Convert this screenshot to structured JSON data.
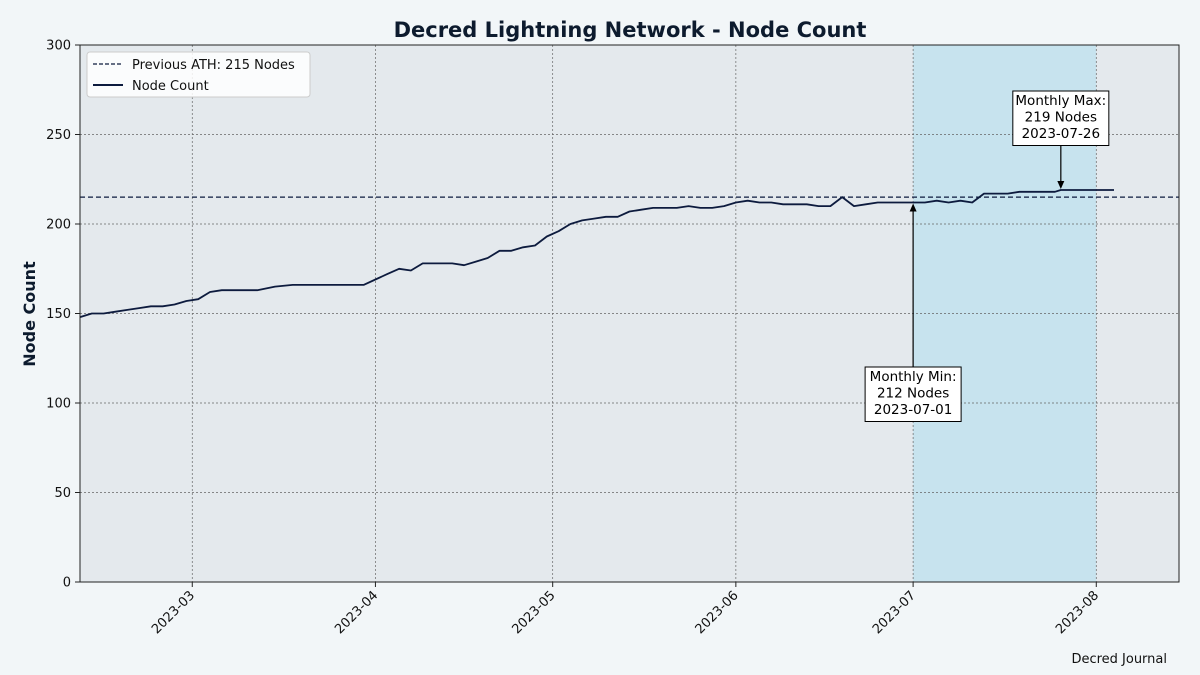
{
  "chart_data": {
    "type": "line",
    "title": "Decred Lightning Network - Node Count",
    "xlabel": "",
    "ylabel": "Node Count",
    "ylim": [
      0,
      300
    ],
    "yticks": [
      0,
      50,
      100,
      150,
      200,
      250,
      300
    ],
    "xlim": [
      "2023-02-10",
      "2023-08-15"
    ],
    "xticks": [
      "2023-03",
      "2023-04",
      "2023-05",
      "2023-06",
      "2023-07",
      "2023-08"
    ],
    "grid": true,
    "legend_position": "top-left",
    "shaded_region": {
      "from": "2023-07-01",
      "to": "2023-08-01",
      "color": "#c7e3ee"
    },
    "reference_line": {
      "name": "Previous ATH: 215 Nodes",
      "value": 215,
      "style": "dashed",
      "color": "#0d1b3e"
    },
    "series": [
      {
        "name": "Node Count",
        "color": "#0d1b3e",
        "x": [
          "2023-02-10",
          "2023-02-12",
          "2023-02-14",
          "2023-02-16",
          "2023-02-18",
          "2023-02-20",
          "2023-02-22",
          "2023-02-24",
          "2023-02-26",
          "2023-02-28",
          "2023-03-02",
          "2023-03-04",
          "2023-03-06",
          "2023-03-08",
          "2023-03-10",
          "2023-03-12",
          "2023-03-15",
          "2023-03-18",
          "2023-03-21",
          "2023-03-24",
          "2023-03-27",
          "2023-03-30",
          "2023-04-01",
          "2023-04-03",
          "2023-04-05",
          "2023-04-07",
          "2023-04-09",
          "2023-04-12",
          "2023-04-14",
          "2023-04-16",
          "2023-04-18",
          "2023-04-20",
          "2023-04-22",
          "2023-04-24",
          "2023-04-26",
          "2023-04-28",
          "2023-04-30",
          "2023-05-02",
          "2023-05-04",
          "2023-05-06",
          "2023-05-08",
          "2023-05-10",
          "2023-05-12",
          "2023-05-14",
          "2023-05-16",
          "2023-05-18",
          "2023-05-20",
          "2023-05-22",
          "2023-05-24",
          "2023-05-26",
          "2023-05-28",
          "2023-05-30",
          "2023-06-01",
          "2023-06-03",
          "2023-06-05",
          "2023-06-07",
          "2023-06-09",
          "2023-06-11",
          "2023-06-13",
          "2023-06-15",
          "2023-06-17",
          "2023-06-19",
          "2023-06-21",
          "2023-06-23",
          "2023-06-25",
          "2023-06-27",
          "2023-06-29",
          "2023-07-01",
          "2023-07-03",
          "2023-07-05",
          "2023-07-07",
          "2023-07-09",
          "2023-07-11",
          "2023-07-13",
          "2023-07-15",
          "2023-07-17",
          "2023-07-19",
          "2023-07-21",
          "2023-07-23",
          "2023-07-25",
          "2023-07-26",
          "2023-07-28",
          "2023-07-30",
          "2023-08-01",
          "2023-08-04"
        ],
        "values": [
          148,
          150,
          150,
          151,
          152,
          153,
          154,
          154,
          155,
          157,
          158,
          162,
          163,
          163,
          163,
          163,
          165,
          166,
          166,
          166,
          166,
          166,
          169,
          172,
          175,
          174,
          178,
          178,
          178,
          177,
          179,
          181,
          185,
          185,
          187,
          188,
          193,
          196,
          200,
          202,
          203,
          204,
          204,
          207,
          208,
          209,
          209,
          209,
          210,
          209,
          209,
          210,
          212,
          213,
          212,
          212,
          211,
          211,
          211,
          210,
          210,
          215,
          210,
          211,
          212,
          212,
          212,
          212,
          212,
          213,
          212,
          213,
          212,
          217,
          217,
          217,
          218,
          218,
          218,
          218,
          219,
          219,
          219,
          219,
          219
        ],
        "ylim": [
          0,
          300
        ]
      }
    ],
    "annotations": [
      {
        "lines": [
          "Monthly Max:",
          "219 Nodes",
          "2023-07-26"
        ],
        "x": "2023-07-26",
        "y": 219
      },
      {
        "lines": [
          "Monthly Min:",
          "212 Nodes",
          "2023-07-01"
        ],
        "x": "2023-07-01",
        "y": 212
      }
    ]
  },
  "footer": {
    "source": "Decred Journal"
  }
}
